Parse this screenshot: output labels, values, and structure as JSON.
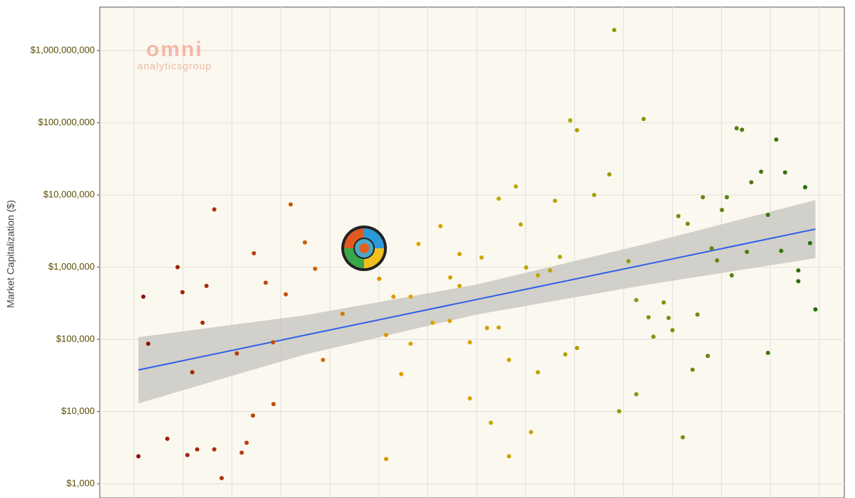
{
  "chart_data": {
    "type": "scatter",
    "y_label": "Market Capitalization ($)",
    "logo": {
      "mark": "omni",
      "text": "analyticsgroup"
    },
    "log_y": true,
    "grid": true,
    "ylim": [
      635,
      4000000000
    ],
    "yticks": [
      {
        "value": 1000,
        "label": "$1,000"
      },
      {
        "value": 10000,
        "label": "$10,000"
      },
      {
        "value": 100000,
        "label": "$100,000"
      },
      {
        "value": 1000000,
        "label": "$1,000,000"
      },
      {
        "value": 10000000,
        "label": "$10,000,000"
      },
      {
        "value": 100000000,
        "label": "$100,000,000"
      },
      {
        "value": 1000000000,
        "label": "$1,000,000,000"
      }
    ],
    "xlim": [
      -0.7,
      14.51
    ],
    "xticks": [
      0,
      1,
      2,
      3,
      4,
      5,
      6,
      7,
      8,
      9,
      10,
      11,
      12,
      13,
      14
    ],
    "color_scale": [
      "#8b1000",
      "#c04a10",
      "#e2a200",
      "#b8a800",
      "#7a8a10",
      "#1f6b08"
    ],
    "x": [
      0.09,
      0.19,
      0.29,
      0.68,
      0.89,
      0.99,
      1.09,
      1.19,
      1.29,
      1.4,
      1.48,
      1.64,
      1.64,
      1.79,
      2.1,
      2.2,
      2.3,
      2.43,
      2.45,
      2.69,
      2.84,
      2.85,
      3.1,
      3.2,
      3.49,
      3.7,
      3.86,
      4.26,
      5.01,
      5.15,
      5.15,
      5.3,
      5.46,
      5.65,
      5.65,
      5.81,
      6.1,
      6.26,
      6.45,
      6.46,
      6.65,
      6.65,
      6.86,
      6.86,
      7.1,
      7.21,
      7.29,
      7.45,
      7.45,
      7.66,
      7.66,
      7.8,
      7.9,
      8.01,
      8.11,
      8.25,
      8.25,
      8.5,
      8.6,
      8.7,
      8.81,
      8.91,
      9.05,
      9.05,
      9.4,
      9.71,
      9.81,
      9.91,
      10.1,
      10.26,
      10.26,
      10.41,
      10.51,
      10.61,
      10.82,
      10.92,
      11,
      11.12,
      11.21,
      11.31,
      11.41,
      11.51,
      11.62,
      11.72,
      11.8,
      11.91,
      12.01,
      12.11,
      12.21,
      12.31,
      12.42,
      12.52,
      12.61,
      12.81,
      12.95,
      12.95,
      13.12,
      13.22,
      13.3,
      13.57,
      13.57,
      13.71,
      13.81,
      13.92
    ],
    "values": [
      2400,
      390000,
      87000,
      4200,
      1000000,
      450000,
      2500,
      35000,
      3000,
      170000,
      550000,
      6300000,
      3000,
      1200,
      64000,
      2700,
      3700,
      8800,
      1560000,
      610000,
      91000,
      12700,
      420000,
      7400000,
      2200000,
      950000,
      52000,
      226000,
      690000,
      115000,
      2200,
      390000,
      33000,
      87000,
      390000,
      2100000,
      170000,
      3700000,
      180000,
      720000,
      550000,
      1520000,
      15200,
      91000,
      1360000,
      144000,
      7000,
      8900000,
      146000,
      52000,
      2400,
      13100000,
      3900000,
      990000,
      5200,
      770000,
      35000,
      900000,
      8300000,
      1390000,
      62000,
      108000000,
      79000000,
      76000,
      10000000,
      19300000,
      1930000000,
      10100,
      1210000,
      350000,
      17400,
      113000000,
      202000,
      109000,
      325000,
      198000,
      134000,
      5100000,
      4400,
      4000000,
      38000,
      221000,
      9300000,
      59000,
      1820000,
      1240000,
      6200000,
      9300000,
      770000,
      84000000,
      80000000,
      1630000,
      15000000,
      21000000,
      5300000,
      65000,
      58600000,
      1680000,
      20500000,
      900000,
      640000,
      12800000,
      2150000,
      260000
    ],
    "trend": {
      "color": "#2f5fe8",
      "band_color": "#c8c6c0",
      "x": [
        0.09,
        3.5,
        7,
        10.5,
        13.92
      ],
      "values": [
        37700,
        114600,
        357000,
        1107000,
        3370000
      ],
      "lower": [
        13000,
        62000,
        221000,
        574000,
        1330000
      ],
      "upper": [
        107000,
        216000,
        574000,
        2140000,
        8500000
      ]
    }
  }
}
